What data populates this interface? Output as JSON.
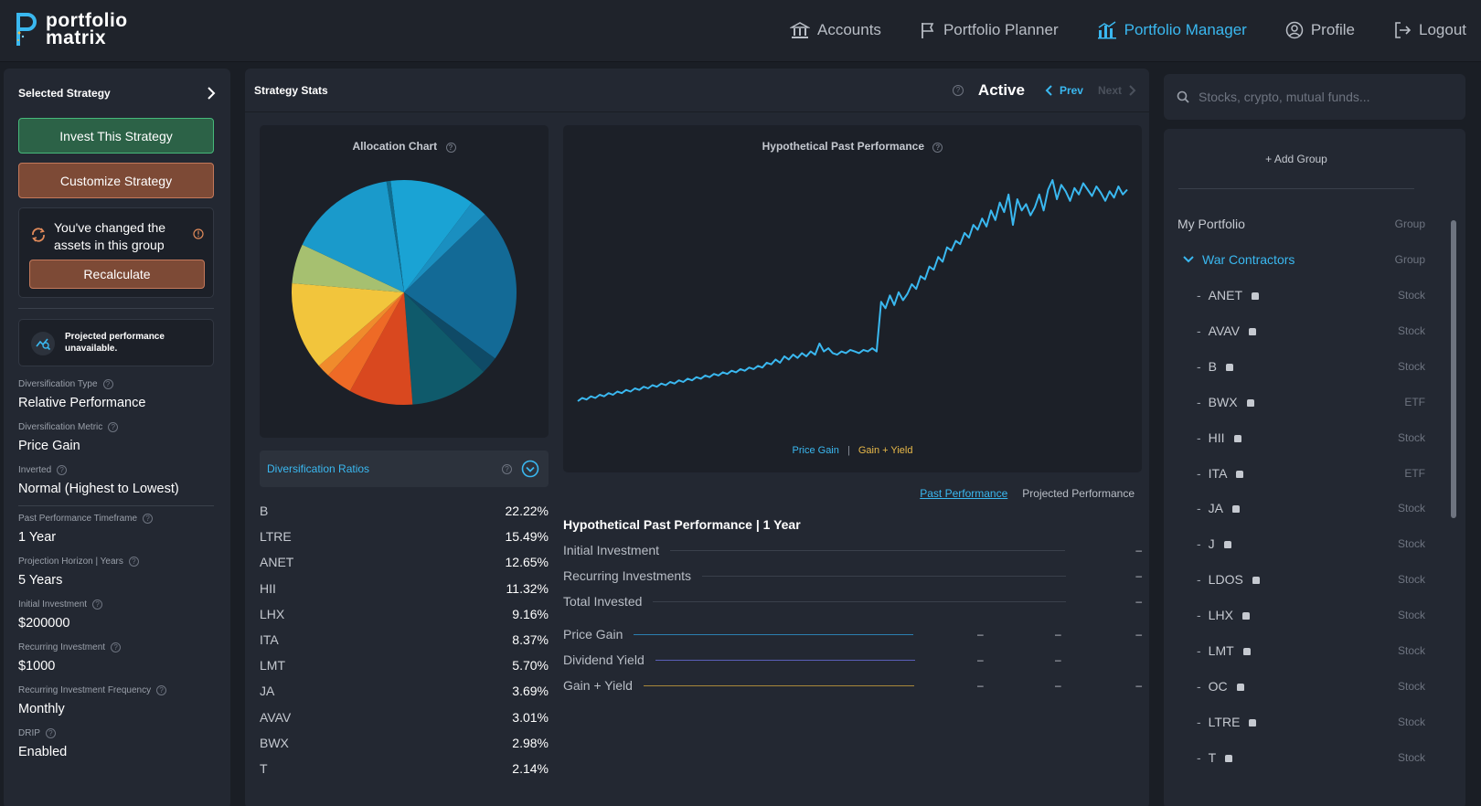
{
  "brand": {
    "line1": "portfolio",
    "line2": "matrix"
  },
  "nav": [
    {
      "label": "Accounts",
      "icon": "bank-icon",
      "active": false
    },
    {
      "label": "Portfolio Planner",
      "icon": "flag-icon",
      "active": false
    },
    {
      "label": "Portfolio Manager",
      "icon": "chart-bar-icon",
      "active": true
    },
    {
      "label": "Profile",
      "icon": "user-circle-icon",
      "active": false
    },
    {
      "label": "Logout",
      "icon": "logout-icon",
      "active": false
    }
  ],
  "left": {
    "header": "Selected Strategy",
    "invest_label": "Invest This Strategy",
    "customize_label": "Customize Strategy",
    "notice_text": "You've changed the assets in this group",
    "recalculate_label": "Recalculate",
    "projected_text": "Projected performance unavailable.",
    "settings": [
      {
        "label": "Diversification Type",
        "value": "Relative Performance"
      },
      {
        "label": "Diversification Metric",
        "value": "Price Gain"
      },
      {
        "label": "Inverted",
        "value": "Normal (Highest to Lowest)"
      },
      {
        "label": "Past Performance Timeframe",
        "value": "1 Year"
      },
      {
        "label": "Projection Horizon | Years",
        "value": "5 Years"
      },
      {
        "label": "Initial Investment",
        "value": "$200000"
      },
      {
        "label": "Recurring Investment",
        "value": "$1000"
      },
      {
        "label": "Recurring Investment Frequency",
        "value": "Monthly"
      },
      {
        "label": "DRIP",
        "value": "Enabled"
      }
    ]
  },
  "stats": {
    "title": "Strategy Stats",
    "status": "Active",
    "prev_label": "Prev",
    "next_label": "Next",
    "allocation_title": "Allocation Chart",
    "performance_title": "Hypothetical Past Performance",
    "legend_price": "Price Gain",
    "legend_sep": "|",
    "legend_yield": "Gain + Yield",
    "ratios_title": "Diversification Ratios",
    "tab_past": "Past Performance",
    "tab_projected": "Projected Performance",
    "hyp_title": "Hypothetical Past Performance | 1 Year",
    "hyp_rows": [
      {
        "label": "Initial Investment",
        "v3": "–"
      },
      {
        "label": "Recurring Investments",
        "v3": "–"
      },
      {
        "label": "Total Invested",
        "v3": "–"
      },
      {
        "label": "Price Gain",
        "v1": "–",
        "v2": "–",
        "v3": "–"
      },
      {
        "label": "Dividend Yield",
        "v1": "–",
        "v2": "–"
      },
      {
        "label": "Gain + Yield",
        "v1": "–",
        "v2": "–",
        "v3": "–"
      }
    ]
  },
  "ratios": [
    {
      "ticker": "B",
      "pct": "22.22%"
    },
    {
      "ticker": "LTRE",
      "pct": "15.49%"
    },
    {
      "ticker": "ANET",
      "pct": "12.65%"
    },
    {
      "ticker": "HII",
      "pct": "11.32%"
    },
    {
      "ticker": "LHX",
      "pct": "9.16%"
    },
    {
      "ticker": "ITA",
      "pct": "8.37%"
    },
    {
      "ticker": "LMT",
      "pct": "5.70%"
    },
    {
      "ticker": "JA",
      "pct": "3.69%"
    },
    {
      "ticker": "AVAV",
      "pct": "3.01%"
    },
    {
      "ticker": "BWX",
      "pct": "2.98%"
    },
    {
      "ticker": "T",
      "pct": "2.14%"
    }
  ],
  "chart_data": [
    {
      "type": "pie",
      "title": "Allocation Chart",
      "slices": [
        {
          "value": 12.2,
          "color": "#1aa3d4"
        },
        {
          "value": 2.5,
          "color": "#1a8fc0"
        },
        {
          "value": 22.2,
          "color": "#136a96"
        },
        {
          "value": 2.5,
          "color": "#0f4a66"
        },
        {
          "value": 11.3,
          "color": "#0f5a6b"
        },
        {
          "value": 9.2,
          "color": "#d9481f"
        },
        {
          "value": 3.8,
          "color": "#ee6a26"
        },
        {
          "value": 1.9,
          "color": "#f08b2c"
        },
        {
          "value": 12.6,
          "color": "#f2c53c"
        },
        {
          "value": 5.7,
          "color": "#a6c070"
        },
        {
          "value": 15.5,
          "color": "#1a9acb"
        },
        {
          "value": 0.6,
          "color": "#0f6d90"
        }
      ]
    },
    {
      "type": "line",
      "title": "Hypothetical Past Performance",
      "series": [
        {
          "color": "#3ab8f0",
          "values": [
            100,
            102,
            101,
            103,
            102,
            104,
            103,
            105,
            104,
            106,
            105,
            107,
            106,
            108,
            107,
            109,
            108,
            110,
            109,
            111,
            110,
            112,
            111,
            113,
            112,
            114,
            113,
            115,
            114,
            116,
            115,
            117,
            116,
            118,
            117,
            119,
            118,
            120,
            119,
            121,
            120,
            122,
            121,
            124,
            123,
            126,
            124,
            128,
            126,
            129,
            127,
            130,
            128,
            131,
            129,
            136,
            131,
            133,
            130,
            129,
            131,
            130,
            132,
            131,
            130,
            132,
            131,
            133,
            131,
            162,
            158,
            166,
            160,
            168,
            163,
            167,
            173,
            170,
            178,
            176,
            184,
            182,
            190,
            187,
            196,
            194,
            200,
            198,
            205,
            202,
            210,
            207,
            214,
            209,
            219,
            213,
            224,
            218,
            229,
            210,
            226,
            219,
            223,
            216,
            221,
            229,
            219,
            232,
            238,
            226,
            235,
            231,
            225,
            233,
            229,
            236,
            232,
            228,
            234,
            230,
            225,
            231,
            227,
            234,
            229,
            232
          ]
        }
      ]
    }
  ],
  "search": {
    "placeholder": "Stocks, crypto, mutual funds..."
  },
  "tree": {
    "add_group": "+ Add Group",
    "root": {
      "label": "My Portfolio",
      "kind": "Group"
    },
    "group": {
      "label": "War Contractors",
      "kind": "Group"
    },
    "items": [
      {
        "ticker": "ANET",
        "kind": "Stock"
      },
      {
        "ticker": "AVAV",
        "kind": "Stock"
      },
      {
        "ticker": "B",
        "kind": "Stock"
      },
      {
        "ticker": "BWX",
        "kind": "ETF"
      },
      {
        "ticker": "HII",
        "kind": "Stock"
      },
      {
        "ticker": "ITA",
        "kind": "ETF"
      },
      {
        "ticker": "JA",
        "kind": "Stock"
      },
      {
        "ticker": "J",
        "kind": "Stock"
      },
      {
        "ticker": "LDOS",
        "kind": "Stock"
      },
      {
        "ticker": "LHX",
        "kind": "Stock"
      },
      {
        "ticker": "LMT",
        "kind": "Stock"
      },
      {
        "ticker": "OC",
        "kind": "Stock"
      },
      {
        "ticker": "LTRE",
        "kind": "Stock"
      },
      {
        "ticker": "T",
        "kind": "Stock"
      }
    ]
  }
}
